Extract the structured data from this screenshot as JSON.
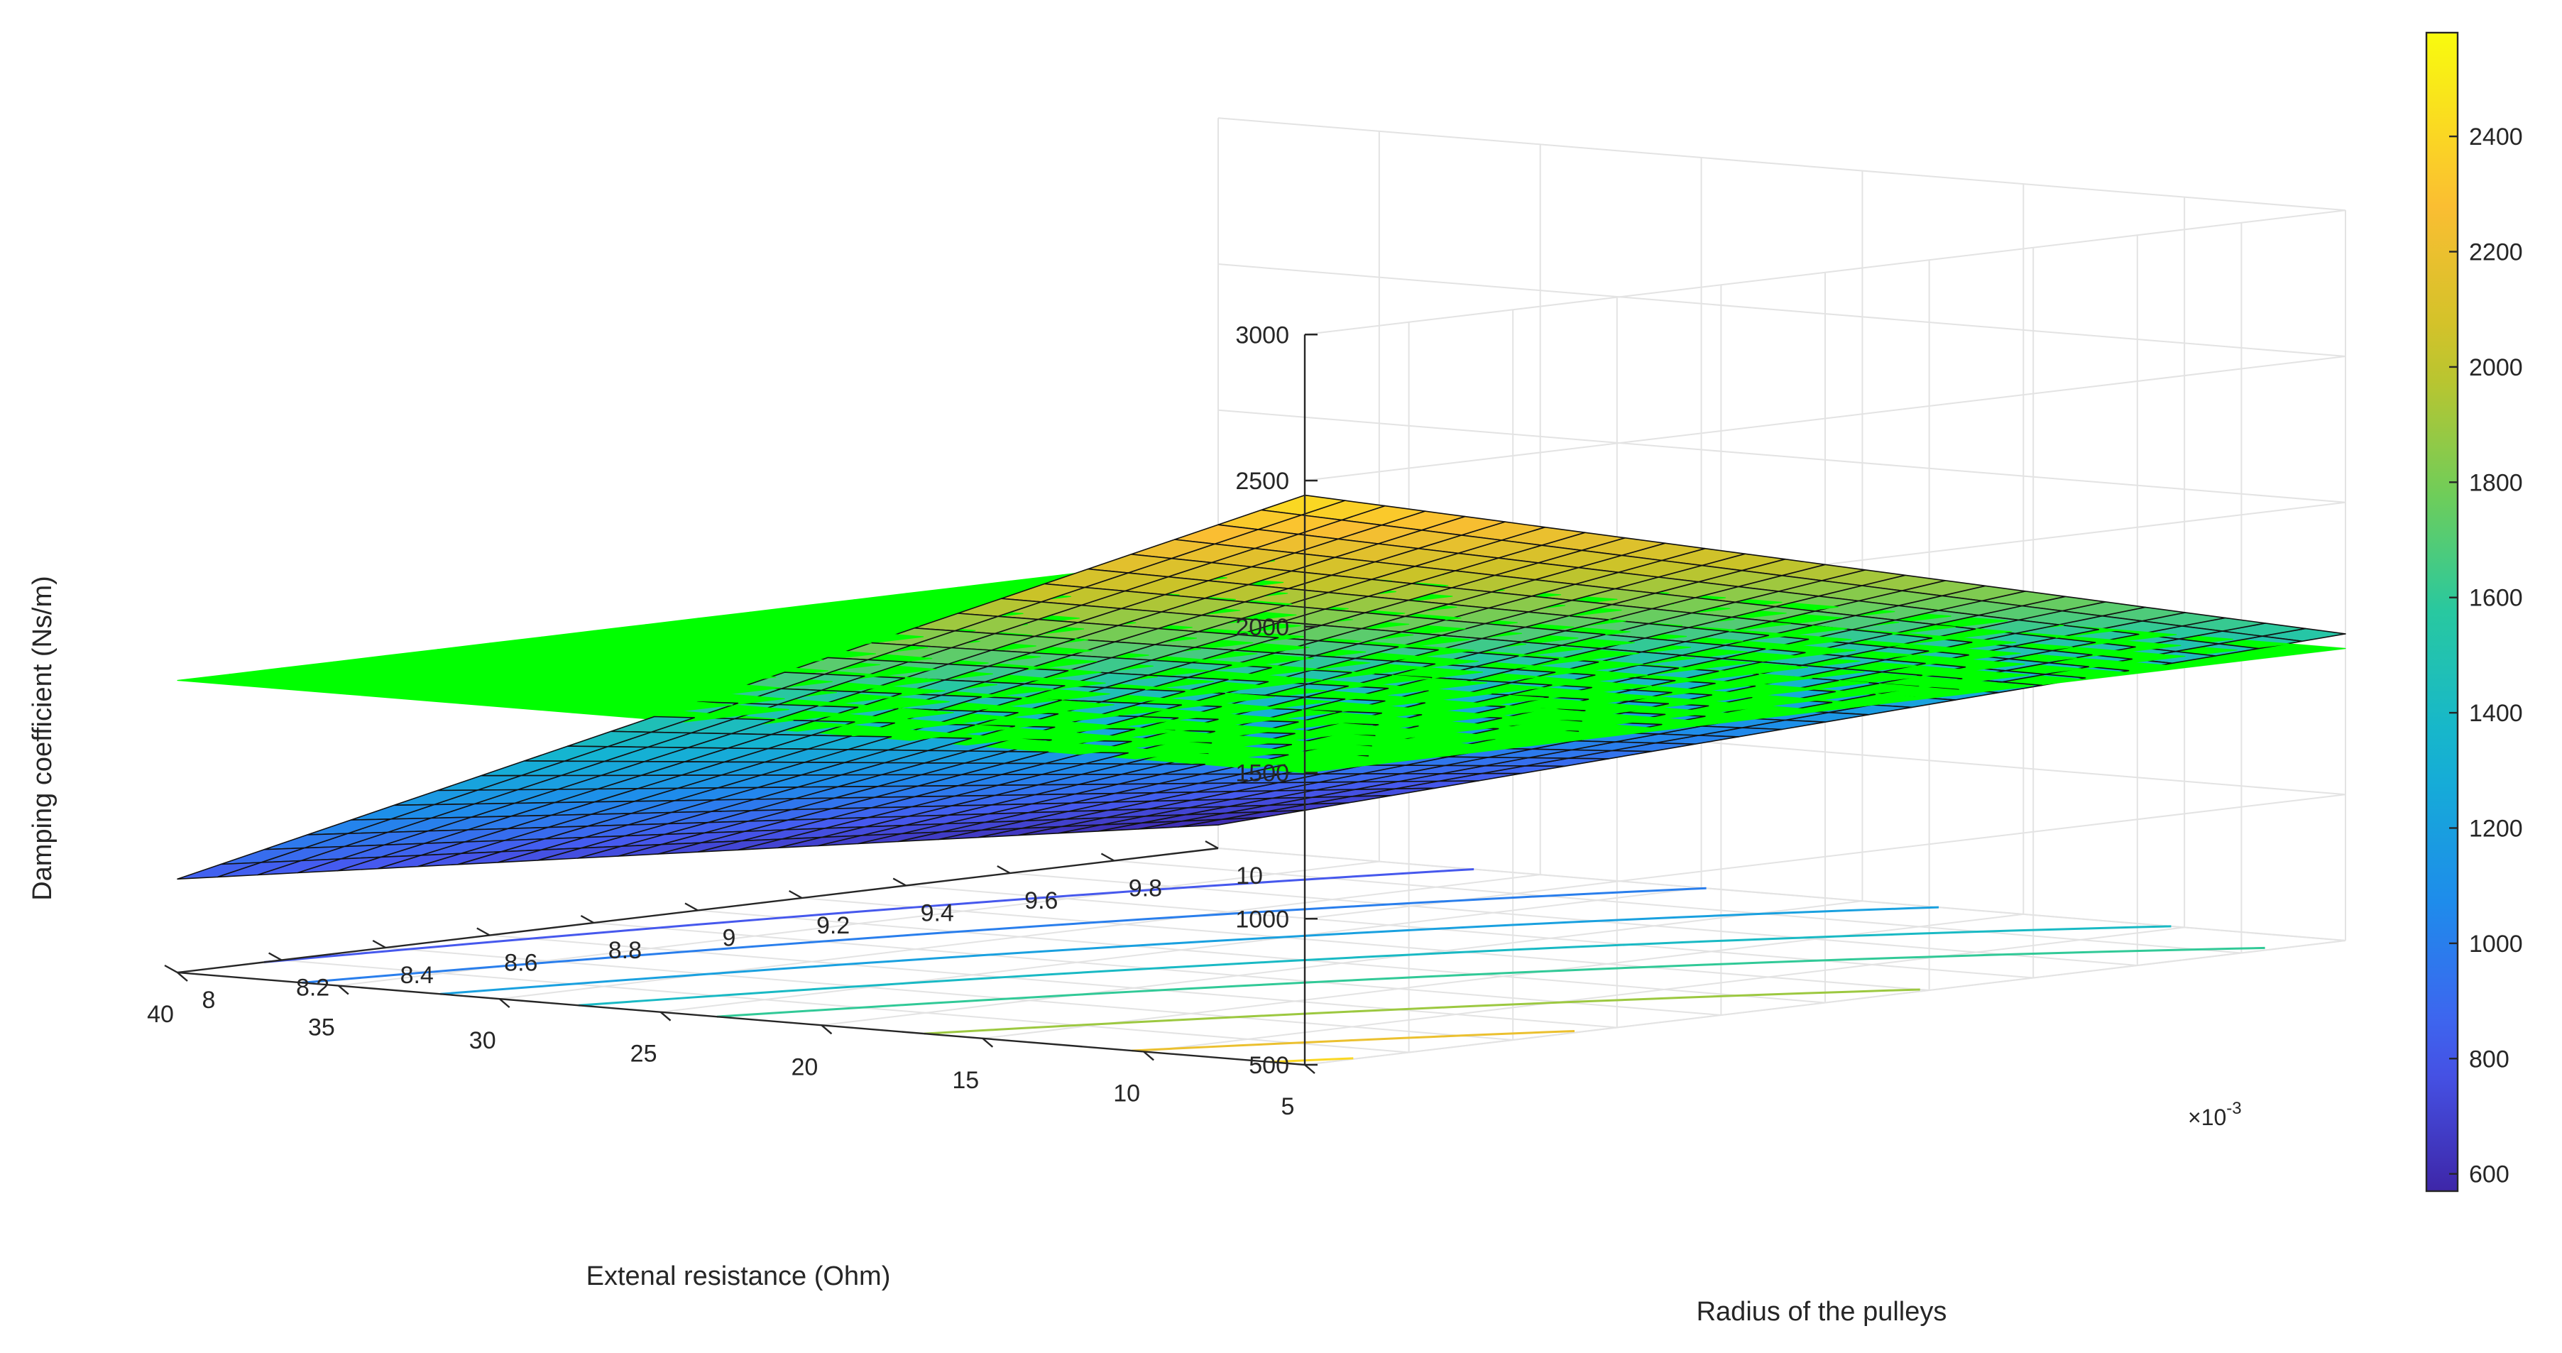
{
  "chart_data": {
    "type": "surface",
    "title": "",
    "xlabel": "Extenal resistance (Ohm)",
    "ylabel": "Radius of the pulleys",
    "zlabel": "Damping coefficient (Ns/m)",
    "y_exponent_label": "×10",
    "y_exponent_power": "-3",
    "x_range": [
      5,
      40
    ],
    "y_range": [
      0.008,
      0.01
    ],
    "z_range": [
      500,
      3000
    ],
    "x_ticks": [
      "5",
      "10",
      "15",
      "20",
      "25",
      "30",
      "35",
      "40"
    ],
    "y_ticks": [
      "8",
      "8.2",
      "8.4",
      "8.6",
      "8.8",
      "9",
      "9.2",
      "9.4",
      "9.6",
      "9.8",
      "10"
    ],
    "z_ticks": [
      "500",
      "1000",
      "1500",
      "2000",
      "2500",
      "3000"
    ],
    "colorbar_ticks": [
      "600",
      "800",
      "1000",
      "1200",
      "1400",
      "1600",
      "1800",
      "2000",
      "2200",
      "2400"
    ],
    "colorbar_range": [
      570,
      2580
    ],
    "colormap": "parula",
    "grid": true,
    "surface": {
      "name": "",
      "corners": [
        {
          "x": 5,
          "y": 0.008,
          "z": 2450
        },
        {
          "x": 5,
          "y": 0.01,
          "z": 1550
        },
        {
          "x": 40,
          "y": 0.008,
          "z": 820
        },
        {
          "x": 40,
          "y": 0.01,
          "z": 580
        }
      ],
      "mesh": "26x26"
    },
    "plane": {
      "name": "",
      "z": 1500,
      "color": "#00ff00"
    },
    "contour_levels": [
      2400,
      2200,
      1900,
      1600,
      1400,
      1200,
      1000,
      800
    ]
  }
}
